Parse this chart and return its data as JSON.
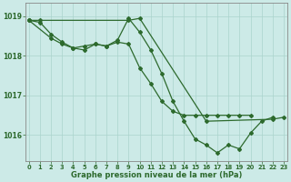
{
  "xlabel": "Graphe pression niveau de la mer (hPa)",
  "background_color": "#cceae7",
  "grid_color": "#aad4cc",
  "line_color": "#2d6a2d",
  "yticks": [
    1016,
    1017,
    1018,
    1019
  ],
  "ylim": [
    1015.35,
    1019.35
  ],
  "xlim": [
    0,
    23
  ],
  "s1_x": [
    0,
    1,
    2,
    3,
    4,
    5,
    6,
    7,
    8,
    9,
    10,
    11,
    12,
    13,
    14,
    15,
    16,
    17,
    18,
    19,
    20,
    21,
    22
  ],
  "s1_y": [
    1018.9,
    1018.85,
    1018.55,
    1018.35,
    1018.2,
    1018.15,
    1018.3,
    1018.25,
    1018.4,
    1018.95,
    1018.6,
    1018.15,
    1017.55,
    1016.85,
    1016.35,
    1015.9,
    1015.75,
    1015.55,
    1015.75,
    1015.65,
    1016.05,
    1016.35,
    1016.45
  ],
  "s2_x": [
    0,
    1,
    9,
    10,
    16,
    22,
    23
  ],
  "s2_y": [
    1018.9,
    1018.9,
    1018.9,
    1018.95,
    1016.35,
    1016.4,
    1016.45
  ],
  "s3_x": [
    0,
    2,
    3,
    4,
    5,
    6,
    7,
    8,
    9,
    10,
    11,
    12,
    13,
    14,
    15,
    16,
    17,
    18,
    19,
    20
  ],
  "s3_y": [
    1018.9,
    1018.45,
    1018.3,
    1018.2,
    1018.25,
    1018.3,
    1018.25,
    1018.35,
    1018.3,
    1017.7,
    1017.3,
    1016.85,
    1016.6,
    1016.5,
    1016.5,
    1016.5,
    1016.5,
    1016.5,
    1016.5,
    1016.5
  ]
}
